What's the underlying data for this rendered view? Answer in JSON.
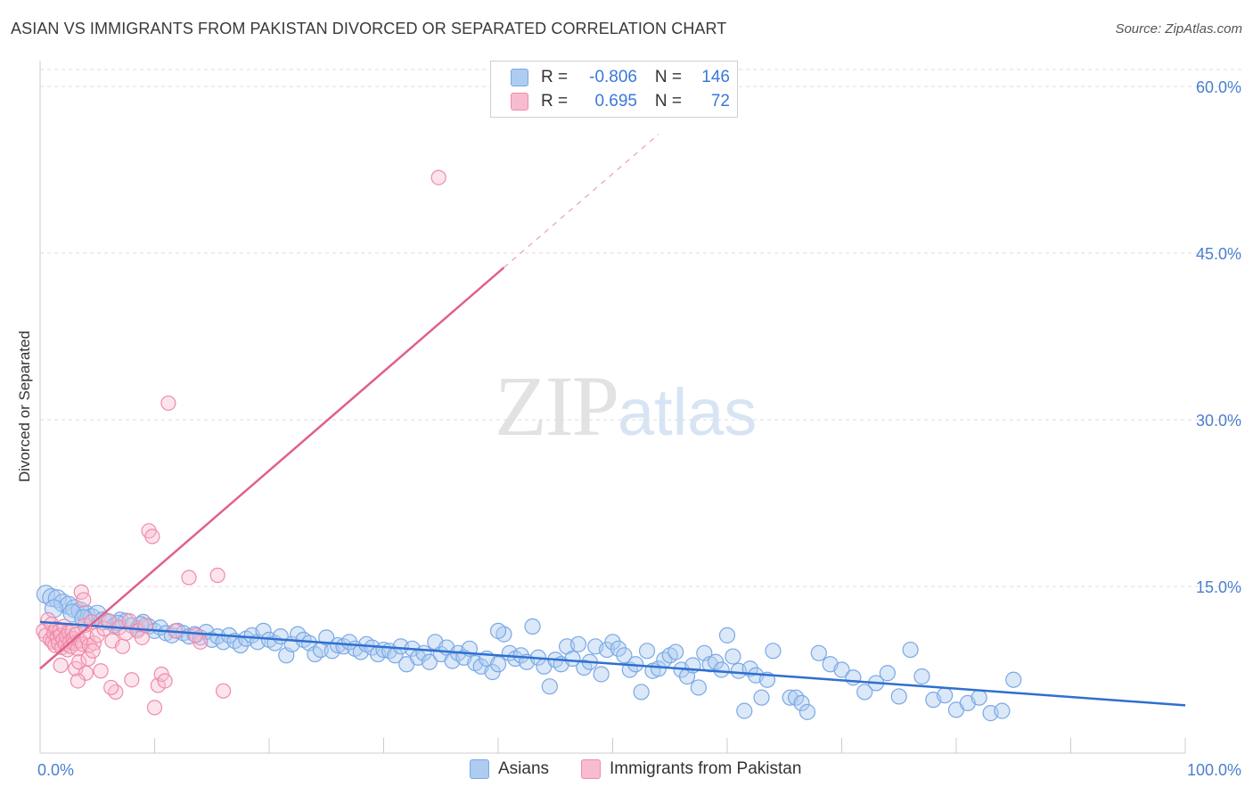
{
  "title": "ASIAN VS IMMIGRANTS FROM PAKISTAN DIVORCED OR SEPARATED CORRELATION CHART",
  "source": "Source: ZipAtlas.com",
  "watermark": {
    "zip": "ZIP",
    "atlas": "atlas"
  },
  "legend": {
    "rows": [
      {
        "r_label": "R =",
        "r_value": "-0.806",
        "n_label": "N =",
        "n_value": "146",
        "color": "#aecbf0"
      },
      {
        "r_label": "R =",
        "r_value": "0.695",
        "n_label": "N =",
        "n_value": "72",
        "color": "#f8bcd0"
      }
    ]
  },
  "bottom_legend": [
    {
      "label": "Asians",
      "color": "#aecbf0"
    },
    {
      "label": "Immigrants from Pakistan",
      "color": "#f8bcd0"
    }
  ],
  "chart_data": {
    "type": "scatter",
    "title": "ASIAN VS IMMIGRANTS FROM PAKISTAN DIVORCED OR SEPARATED CORRELATION CHART",
    "xlabel": "",
    "ylabel": "Divorced or Separated",
    "xlim": [
      0,
      100
    ],
    "ylim": [
      0,
      60
    ],
    "x_tick_labels": [
      "0.0%",
      "100.0%"
    ],
    "y_ticks": [
      15,
      30,
      45,
      60
    ],
    "y_tick_labels": [
      "15.0%",
      "30.0%",
      "45.0%",
      "60.0%"
    ],
    "grid": true,
    "legend_position": "top-center",
    "series": [
      {
        "name": "Asians",
        "color": "#7aa8e6",
        "trend": {
          "x": [
            0,
            100
          ],
          "y": [
            11.8,
            4.3
          ]
        },
        "points": [
          [
            0.5,
            14.3
          ],
          [
            1.0,
            14.0
          ],
          [
            1.5,
            13.9
          ],
          [
            2.0,
            13.5
          ],
          [
            2.5,
            13.3
          ],
          [
            3.0,
            13.0
          ],
          [
            3.5,
            12.8
          ],
          [
            4.0,
            12.5
          ],
          [
            4.5,
            12.2
          ],
          [
            5.0,
            12.5
          ],
          [
            5.5,
            11.9
          ],
          [
            6.0,
            11.8
          ],
          [
            6.5,
            11.5
          ],
          [
            7.0,
            12.0
          ],
          [
            7.5,
            11.9
          ],
          [
            8.0,
            11.5
          ],
          [
            8.5,
            11.2
          ],
          [
            9.0,
            11.8
          ],
          [
            9.5,
            11.4
          ],
          [
            10.0,
            11.0
          ],
          [
            10.5,
            11.3
          ],
          [
            11.0,
            10.8
          ],
          [
            11.5,
            10.6
          ],
          [
            12.0,
            11.0
          ],
          [
            12.5,
            10.8
          ],
          [
            13.0,
            10.5
          ],
          [
            13.5,
            10.7
          ],
          [
            14.0,
            10.4
          ],
          [
            14.5,
            10.9
          ],
          [
            15.0,
            10.2
          ],
          [
            15.5,
            10.5
          ],
          [
            16.0,
            10.0
          ],
          [
            16.5,
            10.6
          ],
          [
            17.0,
            10.1
          ],
          [
            17.5,
            9.7
          ],
          [
            18.0,
            10.3
          ],
          [
            18.5,
            10.6
          ],
          [
            19.0,
            10.0
          ],
          [
            19.5,
            11.0
          ],
          [
            20.0,
            10.2
          ],
          [
            20.5,
            9.9
          ],
          [
            21.0,
            10.5
          ],
          [
            21.5,
            8.8
          ],
          [
            22.0,
            9.8
          ],
          [
            22.5,
            10.7
          ],
          [
            23.0,
            10.2
          ],
          [
            23.5,
            9.9
          ],
          [
            24.0,
            8.9
          ],
          [
            24.5,
            9.3
          ],
          [
            25.0,
            10.4
          ],
          [
            25.5,
            9.2
          ],
          [
            26.0,
            9.7
          ],
          [
            26.5,
            9.6
          ],
          [
            27.0,
            10.0
          ],
          [
            27.5,
            9.4
          ],
          [
            28.0,
            9.1
          ],
          [
            28.5,
            9.8
          ],
          [
            29.0,
            9.5
          ],
          [
            29.5,
            8.9
          ],
          [
            30.0,
            9.3
          ],
          [
            30.5,
            9.2
          ],
          [
            31.0,
            8.8
          ],
          [
            31.5,
            9.6
          ],
          [
            32.0,
            8.0
          ],
          [
            32.5,
            9.4
          ],
          [
            33.0,
            8.6
          ],
          [
            33.5,
            9.0
          ],
          [
            34.0,
            8.2
          ],
          [
            34.5,
            10.0
          ],
          [
            35.0,
            8.9
          ],
          [
            35.5,
            9.5
          ],
          [
            36.0,
            8.3
          ],
          [
            36.5,
            9.0
          ],
          [
            37.0,
            8.6
          ],
          [
            37.5,
            9.4
          ],
          [
            38.0,
            8.1
          ],
          [
            38.5,
            7.8
          ],
          [
            39.0,
            8.5
          ],
          [
            39.5,
            7.3
          ],
          [
            40.0,
            8.0
          ],
          [
            40.5,
            10.7
          ],
          [
            41.0,
            9.0
          ],
          [
            41.5,
            8.5
          ],
          [
            42.0,
            8.8
          ],
          [
            42.5,
            8.2
          ],
          [
            43.0,
            11.4
          ],
          [
            43.5,
            8.6
          ],
          [
            44.0,
            7.8
          ],
          [
            44.5,
            6.0
          ],
          [
            45.0,
            8.4
          ],
          [
            45.5,
            8.0
          ],
          [
            46.0,
            9.6
          ],
          [
            46.5,
            8.5
          ],
          [
            47.0,
            9.8
          ],
          [
            47.5,
            7.7
          ],
          [
            48.0,
            8.2
          ],
          [
            48.5,
            9.6
          ],
          [
            49.0,
            7.1
          ],
          [
            49.5,
            9.3
          ],
          [
            50.0,
            10.0
          ],
          [
            50.5,
            9.4
          ],
          [
            51.0,
            8.8
          ],
          [
            51.5,
            7.5
          ],
          [
            52.0,
            8.0
          ],
          [
            52.5,
            5.5
          ],
          [
            53.0,
            9.2
          ],
          [
            53.5,
            7.4
          ],
          [
            54.0,
            7.6
          ],
          [
            54.5,
            8.4
          ],
          [
            55.0,
            8.8
          ],
          [
            55.5,
            9.1
          ],
          [
            56.0,
            7.5
          ],
          [
            56.5,
            6.9
          ],
          [
            57.0,
            7.9
          ],
          [
            57.5,
            5.9
          ],
          [
            58.0,
            9.0
          ],
          [
            58.5,
            8.0
          ],
          [
            59.0,
            8.2
          ],
          [
            59.5,
            7.5
          ],
          [
            60.0,
            10.6
          ],
          [
            60.5,
            8.7
          ],
          [
            61.0,
            7.4
          ],
          [
            61.5,
            3.8
          ],
          [
            62.0,
            7.6
          ],
          [
            62.5,
            7.0
          ],
          [
            63.0,
            5.0
          ],
          [
            63.5,
            6.6
          ],
          [
            64.0,
            9.2
          ],
          [
            65.5,
            5.0
          ],
          [
            66.0,
            5.0
          ],
          [
            66.5,
            4.5
          ],
          [
            67.0,
            3.7
          ],
          [
            68.0,
            9.0
          ],
          [
            69.0,
            8.0
          ],
          [
            70.0,
            7.5
          ],
          [
            71.0,
            6.8
          ],
          [
            72.0,
            5.5
          ],
          [
            73.0,
            6.3
          ],
          [
            74.0,
            7.2
          ],
          [
            75.0,
            5.1
          ],
          [
            76.0,
            9.3
          ],
          [
            77.0,
            6.9
          ],
          [
            78.0,
            4.8
          ],
          [
            79.0,
            5.2
          ],
          [
            80.0,
            3.9
          ],
          [
            81.0,
            4.5
          ],
          [
            82.0,
            5.0
          ],
          [
            83.0,
            3.6
          ],
          [
            84.0,
            3.8
          ],
          [
            85.0,
            6.6
          ],
          [
            1.2,
            13.0
          ],
          [
            2.8,
            12.6
          ],
          [
            3.8,
            12.1
          ],
          [
            6.8,
            11.7
          ],
          [
            8.8,
            11.6
          ],
          [
            40.0,
            11.0
          ]
        ]
      },
      {
        "name": "Immigrants from Pakistan",
        "color": "#f08aaa",
        "trend": {
          "x": [
            0,
            40.5
          ],
          "y": [
            7.6,
            43.7
          ]
        },
        "trend_dashed": {
          "x": [
            40.5,
            54.0
          ],
          "y": [
            43.7,
            55.7
          ]
        },
        "points": [
          [
            0.3,
            11.0
          ],
          [
            0.5,
            10.6
          ],
          [
            0.7,
            12.0
          ],
          [
            0.9,
            10.2
          ],
          [
            1.0,
            11.6
          ],
          [
            1.1,
            10.0
          ],
          [
            1.2,
            10.8
          ],
          [
            1.3,
            9.7
          ],
          [
            1.4,
            11.2
          ],
          [
            1.5,
            10.4
          ],
          [
            1.6,
            9.9
          ],
          [
            1.7,
            11.0
          ],
          [
            1.8,
            10.6
          ],
          [
            1.9,
            9.5
          ],
          [
            2.0,
            10.2
          ],
          [
            2.1,
            11.4
          ],
          [
            2.2,
            9.8
          ],
          [
            2.3,
            10.5
          ],
          [
            2.4,
            9.3
          ],
          [
            2.5,
            10.9
          ],
          [
            2.6,
            10.0
          ],
          [
            2.7,
            9.6
          ],
          [
            2.8,
            11.0
          ],
          [
            2.9,
            10.3
          ],
          [
            3.0,
            9.9
          ],
          [
            3.1,
            7.6
          ],
          [
            3.2,
            10.7
          ],
          [
            3.3,
            9.4
          ],
          [
            3.4,
            8.2
          ],
          [
            3.5,
            10.1
          ],
          [
            3.6,
            14.5
          ],
          [
            3.7,
            9.8
          ],
          [
            3.8,
            13.8
          ],
          [
            3.9,
            11.5
          ],
          [
            4.0,
            7.2
          ],
          [
            4.1,
            10.4
          ],
          [
            4.2,
            8.5
          ],
          [
            4.3,
            9.7
          ],
          [
            4.5,
            11.8
          ],
          [
            4.7,
            9.9
          ],
          [
            5.0,
            10.6
          ],
          [
            5.3,
            7.4
          ],
          [
            5.6,
            11.2
          ],
          [
            6.0,
            11.9
          ],
          [
            6.3,
            10.1
          ],
          [
            6.6,
            5.5
          ],
          [
            6.9,
            11.3
          ],
          [
            7.2,
            9.6
          ],
          [
            7.5,
            10.8
          ],
          [
            7.8,
            11.9
          ],
          [
            8.0,
            6.6
          ],
          [
            8.5,
            11.0
          ],
          [
            8.9,
            10.4
          ],
          [
            9.2,
            11.5
          ],
          [
            9.5,
            20.0
          ],
          [
            9.8,
            19.5
          ],
          [
            10.0,
            4.1
          ],
          [
            10.3,
            6.1
          ],
          [
            10.6,
            7.1
          ],
          [
            10.9,
            6.5
          ],
          [
            11.2,
            31.5
          ],
          [
            11.8,
            11.0
          ],
          [
            13.0,
            15.8
          ],
          [
            14.0,
            10.0
          ],
          [
            15.5,
            16.0
          ],
          [
            16.0,
            5.6
          ],
          [
            13.6,
            10.6
          ],
          [
            3.3,
            6.5
          ],
          [
            6.2,
            5.9
          ],
          [
            1.8,
            7.9
          ],
          [
            34.8,
            51.8
          ],
          [
            4.6,
            9.2
          ]
        ]
      }
    ]
  }
}
